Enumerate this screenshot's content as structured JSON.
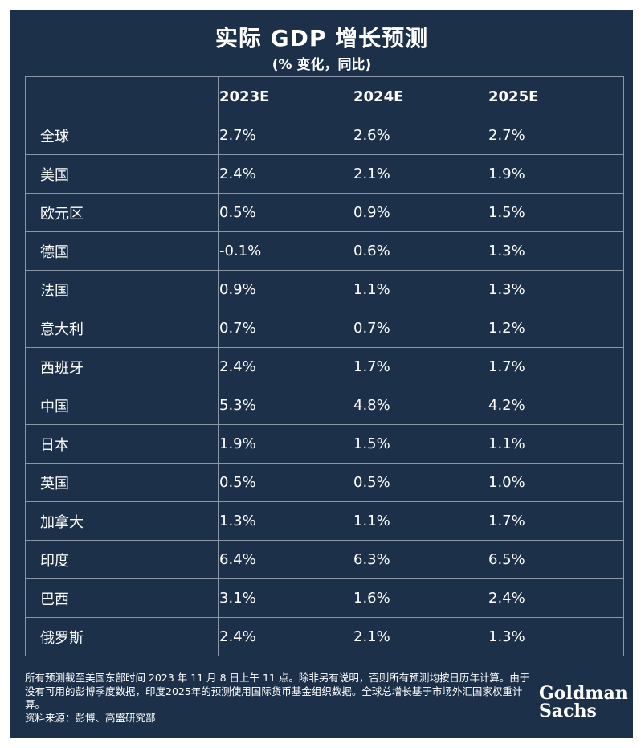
{
  "title": "实际 GDP 增长预测",
  "subtitle": "(% 变化，同比)",
  "chart_data": {
    "type": "table",
    "columns": [
      "",
      "2023E",
      "2024E",
      "2025E"
    ],
    "rows": [
      {
        "label": "全球",
        "values": [
          "2.7%",
          "2.6%",
          "2.7%"
        ]
      },
      {
        "label": "美国",
        "values": [
          "2.4%",
          "2.1%",
          "1.9%"
        ]
      },
      {
        "label": "欧元区",
        "values": [
          "0.5%",
          "0.9%",
          "1.5%"
        ]
      },
      {
        "label": "德国",
        "values": [
          "-0.1%",
          "0.6%",
          "1.3%"
        ]
      },
      {
        "label": "法国",
        "values": [
          "0.9%",
          "1.1%",
          "1.3%"
        ]
      },
      {
        "label": "意大利",
        "values": [
          "0.7%",
          "0.7%",
          "1.2%"
        ]
      },
      {
        "label": "西班牙",
        "values": [
          "2.4%",
          "1.7%",
          "1.7%"
        ]
      },
      {
        "label": "中国",
        "values": [
          "5.3%",
          "4.8%",
          "4.2%"
        ]
      },
      {
        "label": "日本",
        "values": [
          "1.9%",
          "1.5%",
          "1.1%"
        ]
      },
      {
        "label": "英国",
        "values": [
          "0.5%",
          "0.5%",
          "1.0%"
        ]
      },
      {
        "label": "加拿大",
        "values": [
          "1.3%",
          "1.1%",
          "1.7%"
        ]
      },
      {
        "label": "印度",
        "values": [
          "6.4%",
          "6.3%",
          "6.5%"
        ]
      },
      {
        "label": "巴西",
        "values": [
          "3.1%",
          "1.6%",
          "2.4%"
        ]
      },
      {
        "label": "俄罗斯",
        "values": [
          "2.4%",
          "2.1%",
          "1.3%"
        ]
      }
    ]
  },
  "footnote": "所有预测截至美国东部时间 2023 年 11 月 8 日上午 11 点。除非另有说明，否则所有预测均按日历年计算。由于没有可用的彭博季度数据，印度2025年的预测使用国际货币基金组织数据。全球总增长基于市场外汇国家权重计算。",
  "source": "资料来源：彭博、高盛研究部",
  "logo": {
    "line1": "Goldman",
    "line2": "Sachs"
  },
  "colors": {
    "background": "#1c3049",
    "text": "#ffffff",
    "grid": "#8a97a8"
  }
}
